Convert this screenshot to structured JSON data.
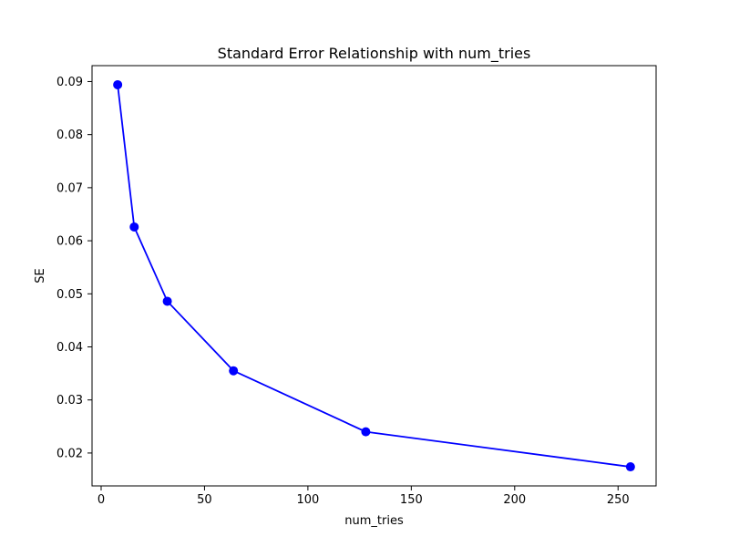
{
  "figure": {
    "background": "#ffffff"
  },
  "chart_data": {
    "type": "line",
    "title": "Standard Error Relationship with num_tries",
    "xlabel": "num_tries",
    "ylabel": "SE",
    "x": [
      8,
      16,
      32,
      64,
      128,
      256
    ],
    "y": [
      0.0894,
      0.0626,
      0.0486,
      0.0355,
      0.024,
      0.0174
    ],
    "xticks": [
      0,
      50,
      100,
      150,
      200,
      250
    ],
    "xtick_labels": [
      "0",
      "50",
      "100",
      "150",
      "200",
      "250"
    ],
    "yticks": [
      0.02,
      0.03,
      0.04,
      0.05,
      0.06,
      0.07,
      0.08,
      0.09
    ],
    "ytick_labels": [
      "0.02",
      "0.03",
      "0.04",
      "0.05",
      "0.06",
      "0.07",
      "0.08",
      "0.09"
    ],
    "xlim": [
      -4.4,
      268.4
    ],
    "ylim": [
      0.0138,
      0.093
    ],
    "line_color": "#0000ff",
    "marker": "o",
    "marker_size": 5,
    "line_width": 1.8,
    "grid": false,
    "legend": null,
    "spine_color": "#000000",
    "plot_background": "#ffffff"
  }
}
